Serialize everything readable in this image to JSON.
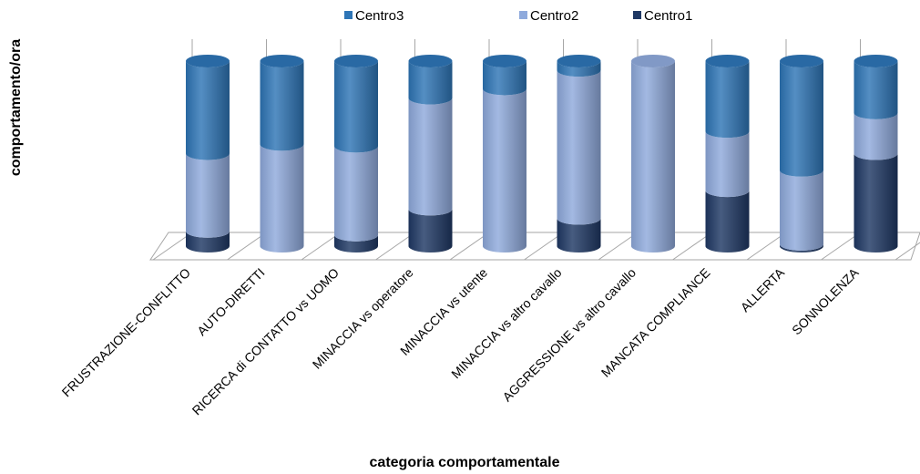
{
  "chart_data": {
    "type": "bar",
    "stacked": true,
    "shape": "cylinder-3d",
    "xlabel": "categoria comportamentale",
    "ylabel": "comportamento/ora",
    "title": "",
    "categories": [
      "FRUSTRAZIONE-CONFLITTO",
      "AUTO-DIRETTI",
      "RICERCA di CONTATTO vs UOMO",
      "MINACCIA vs operatore",
      "MINACCIA vs utente",
      "MINACCIA vs altro cavallo",
      "AGGRESSIONE vs altro cavallo",
      "MANCATA COMPLIANCE",
      "ALLERTA",
      "SONNOLENZA"
    ],
    "series": [
      {
        "name": "Centro1",
        "color": "#1f3864",
        "values": [
          8,
          0,
          6,
          20,
          0,
          15,
          0,
          30,
          1,
          50
        ]
      },
      {
        "name": "Centro2",
        "color": "#8faadc",
        "values": [
          42,
          55,
          48,
          60,
          85,
          80,
          100,
          32,
          40,
          22
        ]
      },
      {
        "name": "Centro3",
        "color": "#2e75b6",
        "values": [
          50,
          45,
          46,
          20,
          15,
          5,
          0,
          38,
          59,
          28
        ]
      }
    ],
    "legend": {
      "position": "top",
      "order": [
        "Centro3",
        "Centro2",
        "Centro1"
      ]
    },
    "ylim": [
      0,
      100
    ],
    "grid": false
  }
}
